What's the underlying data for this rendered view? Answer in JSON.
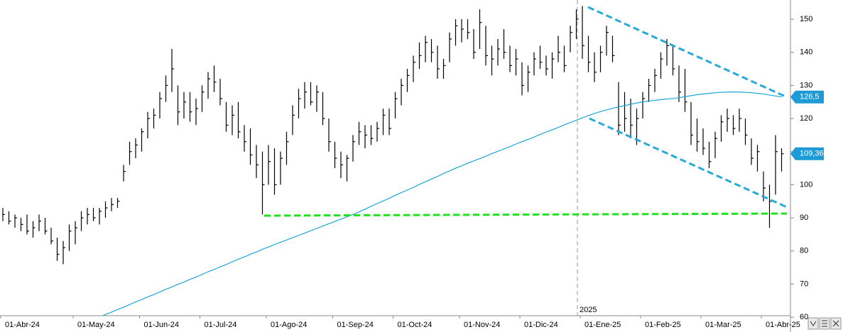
{
  "chart_data": {
    "type": "ohlc",
    "color": "#000000",
    "ma_color": "#1aa7d6",
    "marker_color": "#1e9bd7",
    "grid": false,
    "year_marker": "2025",
    "categories": [
      "01-Abr-24",
      null,
      null,
      null,
      null,
      null,
      null,
      null,
      null,
      null,
      null,
      null,
      "01-May-24",
      null,
      null,
      null,
      null,
      null,
      null,
      null,
      null,
      null,
      null,
      "01-Jun-24",
      null,
      null,
      null,
      null,
      null,
      null,
      null,
      null,
      null,
      "01-Jul-24",
      null,
      null,
      null,
      null,
      null,
      null,
      null,
      null,
      null,
      null,
      "01-Ago-24",
      null,
      null,
      null,
      null,
      null,
      null,
      null,
      null,
      null,
      null,
      "01-Sep-24",
      null,
      null,
      null,
      null,
      null,
      null,
      null,
      null,
      null,
      "01-Oct-24",
      null,
      null,
      null,
      null,
      null,
      null,
      null,
      null,
      null,
      null,
      "01-Nov-24",
      null,
      null,
      null,
      null,
      null,
      null,
      null,
      null,
      null,
      "01-Dic-24",
      null,
      null,
      null,
      null,
      null,
      null,
      null,
      null,
      null,
      "01-Ene-25",
      null,
      null,
      null,
      null,
      null,
      null,
      null,
      null,
      null,
      "01-Feb-25",
      null,
      null,
      null,
      null,
      null,
      null,
      null,
      null,
      null,
      "01-Mar-25",
      null,
      null,
      null,
      null,
      null,
      null,
      null,
      null,
      null,
      "01-Abr-25",
      null,
      null,
      null
    ],
    "high": [
      93,
      92,
      91,
      90,
      91,
      89,
      91,
      90,
      87,
      84,
      83,
      88,
      89,
      92,
      93,
      93,
      93,
      95,
      96,
      96,
      106,
      113,
      114,
      117,
      122,
      123,
      128,
      133,
      141,
      130,
      128,
      128,
      126,
      130,
      134,
      136,
      132,
      125,
      124,
      125,
      118,
      117,
      112,
      110,
      112,
      111,
      110,
      116,
      124,
      129,
      131,
      131,
      130,
      128,
      120,
      113,
      110,
      109,
      115,
      119,
      118,
      118,
      119,
      123,
      123,
      128,
      132,
      135,
      139,
      143,
      145,
      144,
      142,
      138,
      146,
      150,
      150,
      150,
      147,
      153,
      148,
      142,
      144,
      147,
      142,
      141,
      137,
      136,
      140,
      142,
      139,
      140,
      145,
      142,
      148,
      153,
      154,
      145,
      140,
      142,
      148,
      145,
      131,
      128,
      126,
      123,
      128,
      132,
      135,
      140,
      144,
      142,
      136,
      135,
      125,
      120,
      117,
      113,
      116,
      121,
      123,
      121,
      123,
      120,
      114,
      112,
      104,
      100,
      115,
      111
    ],
    "low": [
      89,
      88,
      87,
      86,
      85,
      84,
      86,
      85,
      82,
      77,
      76,
      80,
      82,
      86,
      88,
      89,
      88,
      90,
      92,
      93,
      101,
      106,
      108,
      110,
      114,
      117,
      120,
      125,
      128,
      118,
      120,
      119,
      118,
      122,
      126,
      128,
      124,
      116,
      115,
      114,
      110,
      106,
      102,
      91,
      100,
      97,
      100,
      106,
      115,
      120,
      123,
      124,
      122,
      118,
      110,
      105,
      102,
      101,
      107,
      112,
      111,
      112,
      113,
      115,
      115,
      120,
      124,
      128,
      131,
      135,
      137,
      137,
      132,
      132,
      137,
      142,
      143,
      144,
      138,
      141,
      136,
      133,
      136,
      138,
      134,
      133,
      127,
      128,
      133,
      135,
      133,
      132,
      137,
      134,
      140,
      144,
      138,
      134,
      131,
      134,
      139,
      137,
      115,
      116,
      114,
      112,
      120,
      125,
      128,
      132,
      136,
      133,
      125,
      122,
      112,
      110,
      109,
      105,
      108,
      113,
      116,
      115,
      116,
      112,
      106,
      104,
      95,
      87,
      97,
      104
    ],
    "close": [
      91,
      89,
      90,
      88,
      86,
      87,
      89,
      86,
      83,
      79,
      81,
      86,
      87,
      90,
      91,
      90,
      92,
      93,
      94,
      95,
      104,
      110,
      112,
      116,
      120,
      121,
      126,
      130,
      135,
      122,
      125,
      122,
      123,
      128,
      132,
      131,
      126,
      118,
      121,
      116,
      113,
      109,
      106,
      100,
      107,
      100,
      108,
      113,
      121,
      126,
      128,
      125,
      128,
      120,
      113,
      108,
      106,
      108,
      113,
      116,
      115,
      114,
      117,
      121,
      117,
      126,
      130,
      133,
      137,
      139,
      143,
      140,
      135,
      136,
      144,
      148,
      147,
      146,
      140,
      149,
      139,
      138,
      141,
      140,
      136,
      138,
      130,
      134,
      138,
      137,
      135,
      138,
      140,
      136,
      146,
      150,
      142,
      137,
      134,
      140,
      146,
      139,
      118,
      120,
      118,
      120,
      126,
      130,
      133,
      138,
      142,
      135,
      128,
      125,
      115,
      113,
      111,
      107,
      114,
      119,
      120,
      117,
      120,
      115,
      108,
      110,
      99,
      95,
      110,
      109.36
    ],
    "ma": [
      null,
      null,
      null,
      null,
      null,
      null,
      null,
      null,
      null,
      null,
      null,
      null,
      null,
      null,
      null,
      null,
      60.0,
      60.8,
      61.5,
      62.3,
      63.0,
      63.8,
      64.6,
      65.3,
      66.1,
      66.8,
      67.6,
      68.4,
      69.1,
      69.9,
      70.6,
      71.4,
      72.1,
      72.9,
      73.7,
      74.4,
      75.2,
      75.9,
      76.7,
      77.5,
      78.2,
      79.0,
      79.7,
      80.5,
      81.2,
      81.9,
      82.6,
      83.3,
      84.0,
      84.7,
      85.4,
      86.1,
      86.8,
      87.5,
      88.2,
      88.9,
      89.6,
      90.3,
      91.0,
      91.8,
      92.6,
      93.5,
      94.3,
      95.1,
      95.9,
      96.8,
      97.6,
      98.4,
      99.2,
      100.1,
      100.9,
      101.7,
      102.5,
      103.4,
      104.2,
      105.0,
      105.7,
      106.5,
      107.2,
      107.9,
      108.6,
      109.4,
      110.1,
      110.8,
      111.5,
      112.3,
      113.0,
      113.7,
      114.4,
      115.2,
      115.9,
      116.6,
      117.3,
      118.1,
      118.8,
      119.5,
      120.2,
      120.9,
      121.5,
      122.1,
      122.6,
      123.1,
      123.5,
      123.9,
      124.3,
      124.7,
      125.0,
      125.3,
      125.5,
      125.7,
      125.9,
      126.0,
      126.3,
      126.6,
      126.9,
      127.2,
      127.4,
      127.6,
      127.8,
      127.9,
      128.0,
      128.0,
      128.0,
      127.9,
      127.8,
      127.6,
      127.4,
      127.1,
      126.8,
      126.5
    ],
    "price_markers": [
      {
        "value": 126.5,
        "label": "126,5"
      },
      {
        "value": 109.36,
        "label": "109,36"
      }
    ],
    "ylim": [
      59.8,
      155.8
    ],
    "yticks": [
      150,
      140,
      130,
      120,
      110,
      100,
      90,
      80,
      70,
      60
    ]
  }
}
